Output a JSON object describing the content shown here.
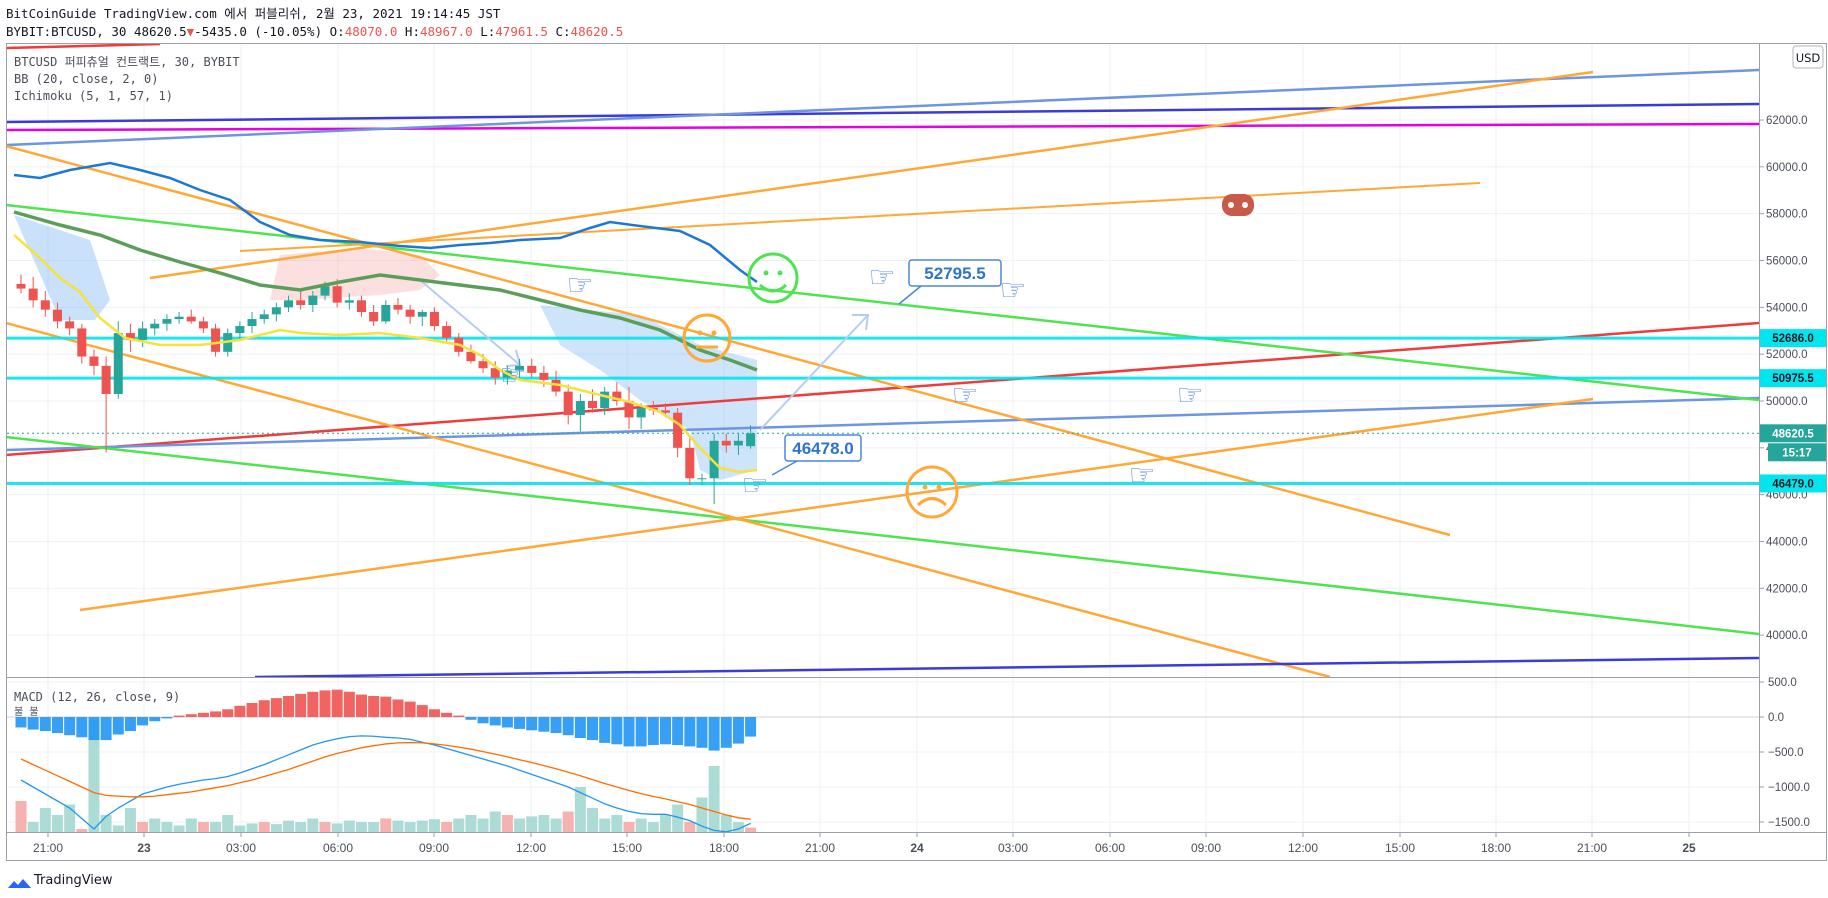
{
  "header": {
    "line1": "BitCoinGuide TradingView.com 에서 퍼블리쉬, 2월 23, 2021 19:14:45 JST",
    "symbol": "BYBIT:BTCUSD, 30",
    "price": "48620.5",
    "change_arrow": "▼",
    "change": "-5435.0 (-10.05%)",
    "o_label": "O:",
    "o_value": "48070.0",
    "h_label": "H:",
    "h_value": "48967.0",
    "l_label": "L:",
    "l_value": "47961.5",
    "c_label": "C:",
    "c_value": "48620.5"
  },
  "legend": {
    "instrument": "BTCUSD 퍼피츄얼 컨트랙트, 30, BYBIT",
    "bb": "BB (20, close, 2, 0)",
    "ichimoku": "Ichimoku (5, 1, 57, 1)",
    "macd": "MACD (12, 26, close, 9)",
    "macd_sub": "불 불"
  },
  "currency_button": "USD",
  "footer": {
    "brand": "TradingView"
  },
  "colors": {
    "up": "#26a69a",
    "down": "#ef5350",
    "hline": "#00e5ee",
    "orange": "#ffa836",
    "green": "#4ee44e",
    "blue": "#6d95e0",
    "navy": "#3a3bd9",
    "magenta": "#e600e6",
    "red": "#ef3b3b",
    "bb_yellow": "#f7e13a",
    "bb_blue": "#1e78d2",
    "bb_green": "#5a9e5a",
    "macd_line": "#2196f3",
    "signal_line": "#ff6d00"
  },
  "chart_data": {
    "type": "candlestick",
    "symbol": "BYBIT:BTCUSD",
    "interval": "30",
    "y_axis": {
      "min": 39000,
      "max": 62200,
      "ticks": [
        40000,
        42000,
        44000,
        46000,
        48000,
        50000,
        52000,
        54000,
        56000,
        58000,
        60000,
        62000
      ]
    },
    "x_axis": {
      "ticks": [
        "21:00",
        "23",
        "03:00",
        "06:00",
        "09:00",
        "12:00",
        "15:00",
        "18:00",
        "21:00",
        "24",
        "03:00",
        "06:00",
        "09:00",
        "12:00",
        "15:00",
        "18:00",
        "21:00",
        "25"
      ]
    },
    "price_labels": [
      {
        "value": 52686.0,
        "label": "52686.0",
        "kind": "hline"
      },
      {
        "value": 50975.5,
        "label": "50975.5",
        "kind": "hline"
      },
      {
        "value": 48620.5,
        "label": "48620.5",
        "kind": "last"
      },
      {
        "value": 46479.0,
        "label": "46479.0",
        "kind": "hline"
      }
    ],
    "countdown": "15:17",
    "horizontal_lines": [
      52686.0,
      50975.5,
      46479.0
    ],
    "callouts": [
      "52795.5",
      "46478.0"
    ],
    "candles": [
      [
        55000,
        55400,
        54600,
        54800
      ],
      [
        54800,
        55300,
        54000,
        54300
      ],
      [
        54300,
        54700,
        53600,
        53900
      ],
      [
        53900,
        54200,
        53100,
        53400
      ],
      [
        53400,
        53600,
        52800,
        53100
      ],
      [
        53100,
        53300,
        51600,
        51900
      ],
      [
        51900,
        52200,
        51100,
        51500
      ],
      [
        51500,
        51900,
        47800,
        50300
      ],
      [
        50300,
        53400,
        50100,
        52900
      ],
      [
        52900,
        53300,
        52100,
        52600
      ],
      [
        52600,
        53400,
        52300,
        53100
      ],
      [
        53100,
        53500,
        52800,
        53300
      ],
      [
        53300,
        53700,
        53000,
        53500
      ],
      [
        53500,
        53800,
        53300,
        53600
      ],
      [
        53600,
        53900,
        53300,
        53400
      ],
      [
        53400,
        53600,
        52900,
        53100
      ],
      [
        53100,
        53300,
        51900,
        52100
      ],
      [
        52100,
        53100,
        51900,
        52900
      ],
      [
        52900,
        53400,
        52600,
        53200
      ],
      [
        53200,
        53800,
        52900,
        53500
      ],
      [
        53500,
        53900,
        53300,
        53700
      ],
      [
        53700,
        54200,
        53400,
        54000
      ],
      [
        54000,
        54500,
        53800,
        54300
      ],
      [
        54300,
        54800,
        53900,
        54100
      ],
      [
        54100,
        54700,
        53800,
        54500
      ],
      [
        54500,
        55100,
        54300,
        54900
      ],
      [
        54900,
        55200,
        54000,
        54200
      ],
      [
        54200,
        54600,
        53900,
        54300
      ],
      [
        54300,
        54500,
        53600,
        53800
      ],
      [
        53800,
        54100,
        53200,
        53400
      ],
      [
        53400,
        54300,
        53300,
        54100
      ],
      [
        54100,
        54400,
        53700,
        53900
      ],
      [
        53900,
        54100,
        53300,
        53600
      ],
      [
        53600,
        53900,
        53200,
        53800
      ],
      [
        53800,
        54000,
        53000,
        53200
      ],
      [
        53200,
        53400,
        52500,
        52700
      ],
      [
        52700,
        52900,
        51900,
        52100
      ],
      [
        52100,
        52400,
        51600,
        51700
      ],
      [
        51700,
        52000,
        51200,
        51400
      ],
      [
        51400,
        51700,
        50700,
        51000
      ],
      [
        51000,
        51500,
        50700,
        51300
      ],
      [
        51300,
        51800,
        51000,
        51500
      ],
      [
        51500,
        51800,
        51000,
        51200
      ],
      [
        51200,
        51500,
        50600,
        50900
      ],
      [
        50900,
        51300,
        50200,
        50400
      ],
      [
        50400,
        50700,
        49000,
        49400
      ],
      [
        49400,
        50300,
        48700,
        50000
      ],
      [
        50000,
        50500,
        49500,
        49700
      ],
      [
        49700,
        50600,
        49400,
        50400
      ],
      [
        50400,
        50800,
        49800,
        50000
      ],
      [
        50000,
        50600,
        48800,
        49300
      ],
      [
        49300,
        49900,
        48800,
        49700
      ],
      [
        49700,
        50000,
        49400,
        49600
      ],
      [
        49600,
        49900,
        49300,
        49500
      ],
      [
        49500,
        49700,
        47600,
        48000
      ],
      [
        48000,
        48400,
        46400,
        46700
      ],
      [
        46700,
        46900,
        46400,
        46700
      ],
      [
        46700,
        48600,
        45600,
        48300
      ],
      [
        48300,
        48600,
        47800,
        48100
      ],
      [
        48100,
        48600,
        47700,
        48300
      ],
      [
        48070,
        48967,
        47961.5,
        48620.5
      ]
    ],
    "macd_axis": {
      "min": -1700,
      "max": 600,
      "ticks": [
        500,
        0,
        -500,
        -1000,
        -1500
      ]
    },
    "macd_hist": [
      -150,
      -180,
      -200,
      -230,
      -260,
      -290,
      -330,
      -330,
      -250,
      -200,
      -120,
      -60,
      -20,
      20,
      40,
      60,
      80,
      110,
      160,
      200,
      240,
      270,
      300,
      330,
      360,
      380,
      390,
      360,
      320,
      300,
      290,
      250,
      220,
      170,
      110,
      60,
      20,
      -40,
      -90,
      -120,
      -150,
      -170,
      -190,
      -210,
      -230,
      -260,
      -300,
      -330,
      -370,
      -390,
      -420,
      -420,
      -400,
      -390,
      -400,
      -420,
      -440,
      -480,
      -440,
      -380,
      -280
    ],
    "macd_line_vals": [
      -900,
      -1000,
      -1100,
      -1200,
      -1300,
      -1450,
      -1600,
      -1420,
      -1300,
      -1200,
      -1100,
      -1050,
      -1000,
      -960,
      -930,
      -900,
      -880,
      -850,
      -800,
      -740,
      -680,
      -610,
      -540,
      -470,
      -400,
      -350,
      -310,
      -280,
      -270,
      -275,
      -290,
      -300,
      -320,
      -360,
      -400,
      -450,
      -500,
      -550,
      -600,
      -650,
      -700,
      -760,
      -820,
      -880,
      -940,
      -1000,
      -1080,
      -1160,
      -1240,
      -1300,
      -1350,
      -1380,
      -1390,
      -1390,
      -1430,
      -1480,
      -1560,
      -1620,
      -1640,
      -1600,
      -1520
    ],
    "signal_line_vals": [
      -600,
      -680,
      -760,
      -840,
      -920,
      -1000,
      -1080,
      -1120,
      -1130,
      -1140,
      -1140,
      -1130,
      -1110,
      -1090,
      -1070,
      -1040,
      -1010,
      -980,
      -940,
      -900,
      -850,
      -800,
      -750,
      -690,
      -630,
      -570,
      -520,
      -480,
      -440,
      -410,
      -385,
      -370,
      -365,
      -370,
      -385,
      -405,
      -430,
      -460,
      -495,
      -530,
      -570,
      -610,
      -650,
      -695,
      -740,
      -790,
      -840,
      -895,
      -950,
      -1000,
      -1050,
      -1095,
      -1135,
      -1170,
      -1210,
      -1250,
      -1300,
      -1350,
      -1400,
      -1440,
      -1460
    ],
    "macd_volume_bars": [
      -1200,
      -1500,
      -1300,
      -1400,
      -1250,
      -1600,
      -50,
      -1400,
      -1550,
      -1300,
      -1500,
      -1450,
      -1500,
      -1550,
      -1450,
      -1500,
      -1500,
      -1400,
      -1550,
      -1520,
      -1500,
      -1530,
      -1480,
      -1500,
      -1450,
      -1500,
      -1520,
      -1480,
      -1500,
      -1500,
      -1450,
      -1480,
      -1500,
      -1480,
      -1460,
      -1500,
      -1450,
      -1400,
      -1450,
      -1350,
      -1400,
      -1450,
      -1420,
      -1400,
      -1450,
      -1350,
      -1000,
      -1300,
      -1450,
      -1400,
      -1500,
      -1450,
      -1500,
      -1400,
      -1250,
      -1500,
      -1150,
      -700,
      -1400,
      -1500,
      -1580
    ]
  }
}
